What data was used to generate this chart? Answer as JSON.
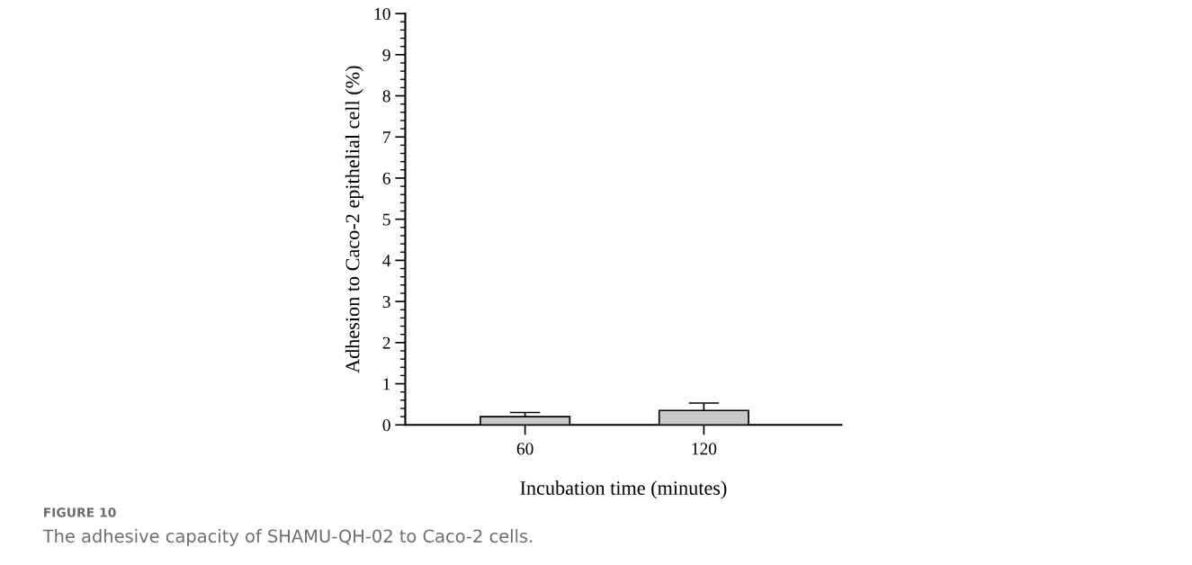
{
  "chart_data": {
    "type": "bar",
    "xlabel": "Incubation time (minutes)",
    "ylabel": "Adhesion to Caco-2 epithelial cell (%)",
    "categories": [
      "60",
      "120"
    ],
    "values": [
      0.2,
      0.35
    ],
    "errors": [
      0.1,
      0.18
    ],
    "color": "#c8c8c8",
    "ylim": [
      0,
      10
    ],
    "yticks": [
      0,
      1,
      2,
      3,
      4,
      5,
      6,
      7,
      8,
      9,
      10
    ],
    "grid": false,
    "legend": false,
    "annotations": [
      "FIGURE 10",
      "The adhesive capacity of SHAMU-QH-02 to Caco-2 cells."
    ]
  }
}
